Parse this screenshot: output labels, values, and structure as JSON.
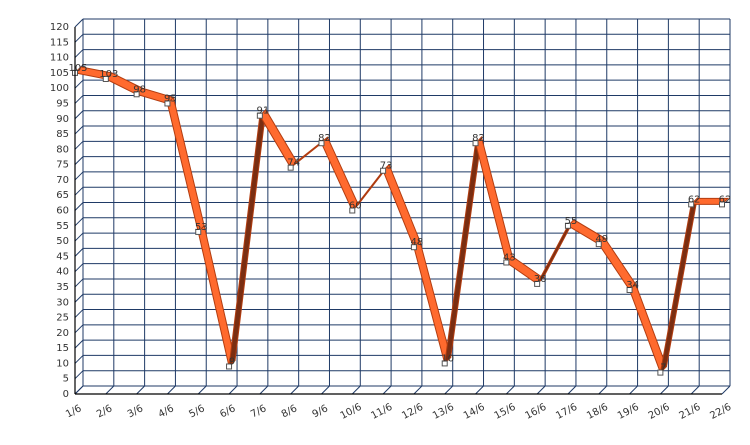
{
  "chart_data": {
    "type": "line",
    "title": "",
    "xlabel": "",
    "ylabel": "",
    "categories": [
      "1/6",
      "2/6",
      "3/6",
      "4/6",
      "5/6",
      "6/6",
      "7/6",
      "8/6",
      "9/6",
      "10/6",
      "11/6",
      "12/6",
      "13/6",
      "14/6",
      "15/6",
      "16/6",
      "17/6",
      "18/6",
      "19/6",
      "20/6",
      "21/6",
      "22/6"
    ],
    "series": [
      {
        "values": [
          105,
          103,
          98,
          95,
          53,
          9,
          91,
          74,
          82,
          60,
          73,
          48,
          10,
          82,
          43,
          36,
          55,
          49,
          34,
          7,
          62,
          62
        ]
      }
    ],
    "ylim": [
      0,
      120
    ],
    "ytick_step": 5,
    "grid": true,
    "style": "3d-ribbon",
    "colors": {
      "ribbon_up": "#ff6a2e",
      "ribbon_down": "#7a2e12",
      "ribbon_edge": "#b33d10",
      "grid": "#1f3a66",
      "axis": "#000000"
    }
  }
}
